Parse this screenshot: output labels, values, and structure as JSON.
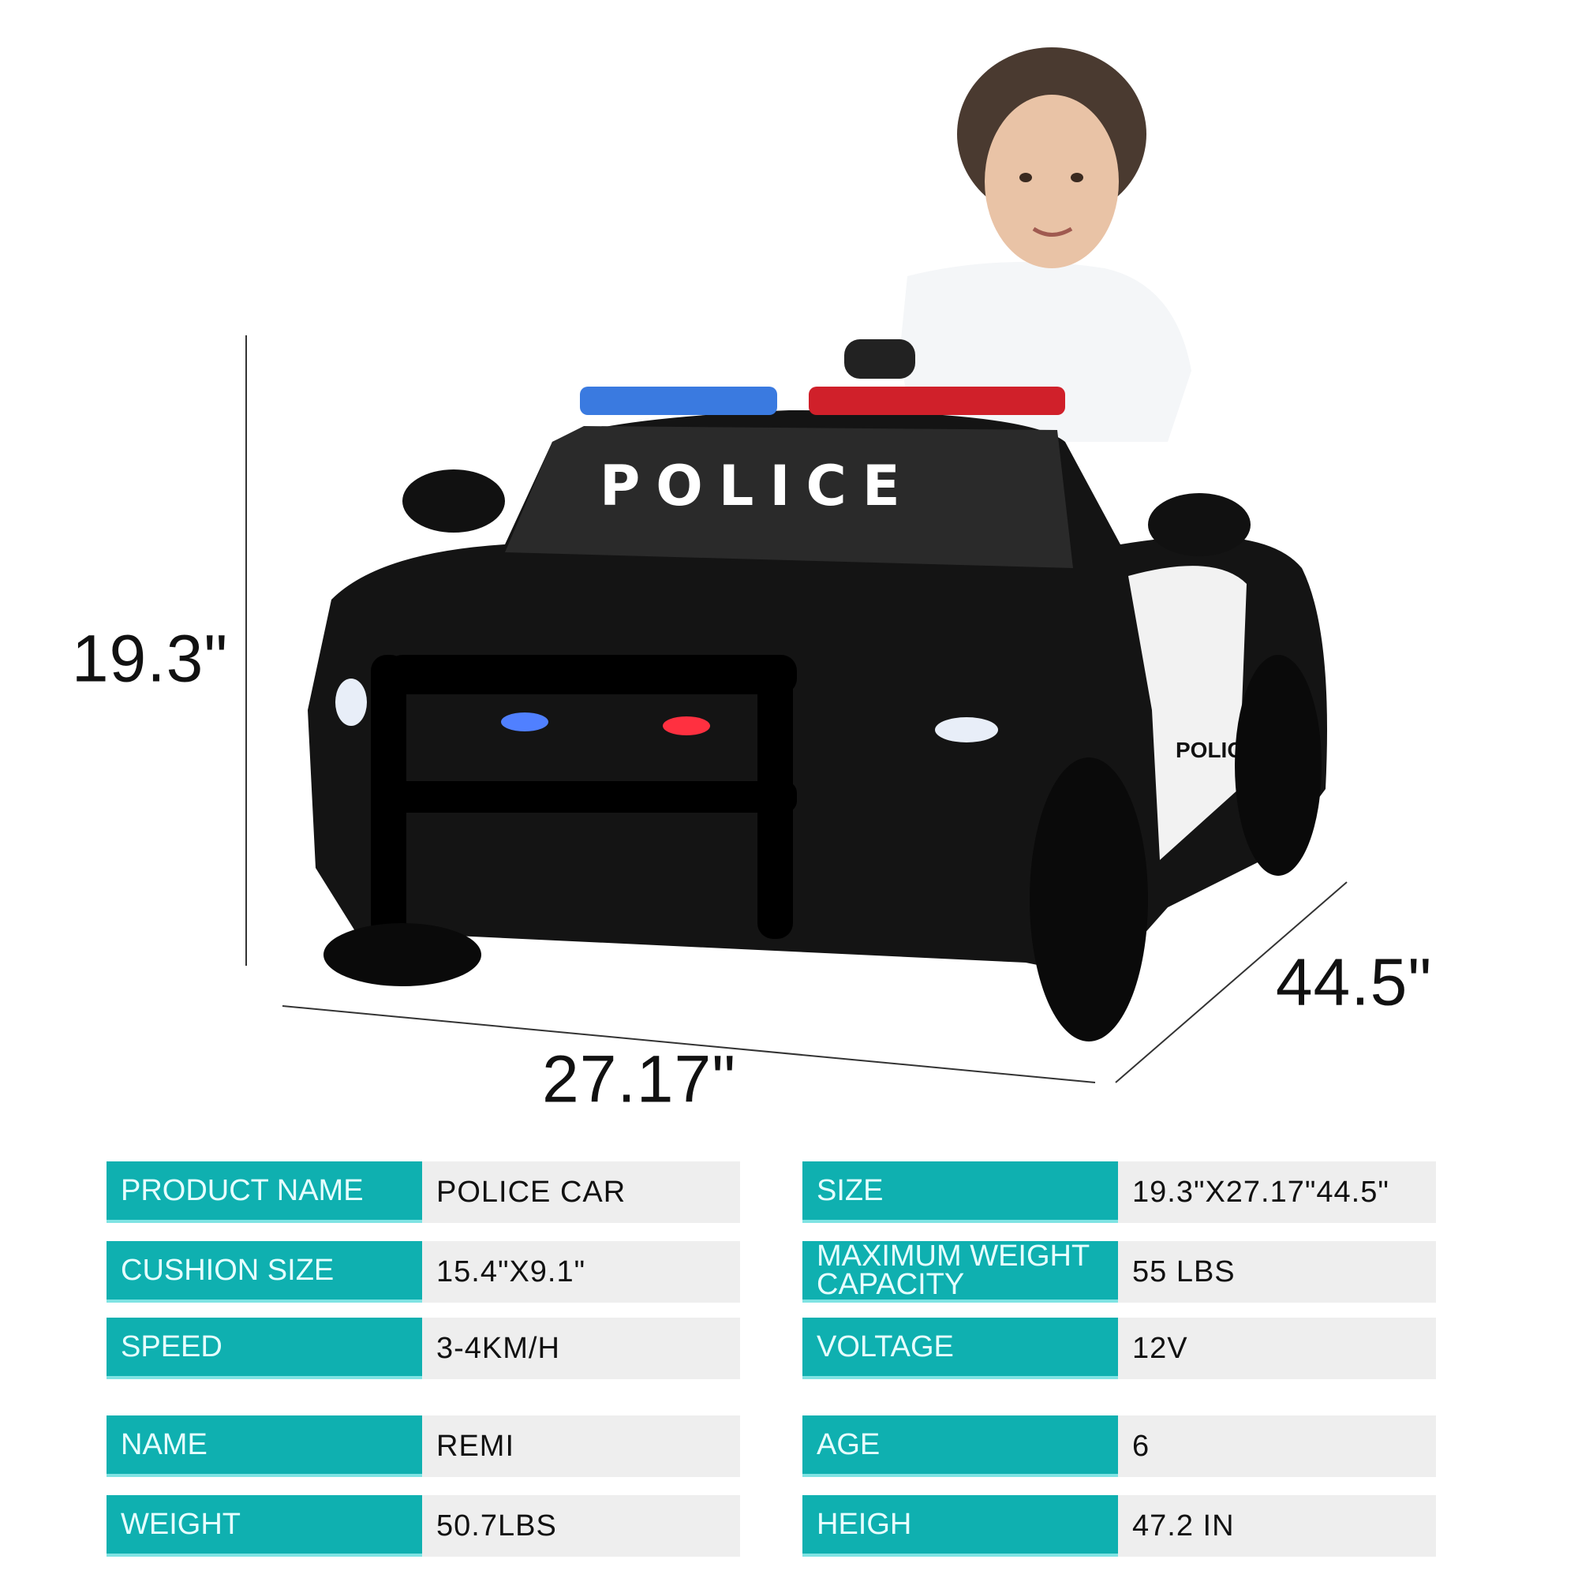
{
  "dimensions": {
    "height": "19.3\"",
    "width": "27.17\"",
    "length": "44.5\""
  },
  "car_lettering": {
    "windshield": "POLICE",
    "door": "POLICE"
  },
  "colors": {
    "accent": "#0fb0b0",
    "value_bg": "#eeeeee",
    "car_body": "#111111"
  },
  "specs_left": [
    {
      "label": "PRODUCT NAME",
      "value": "POLICE CAR"
    },
    {
      "label": "CUSHION SIZE",
      "value": "15.4\"X9.1\""
    },
    {
      "label": "SPEED",
      "value": "3-4KM/H"
    },
    {
      "label": "NAME",
      "value": "REMI"
    },
    {
      "label": "WEIGHT",
      "value": "50.7LBS"
    }
  ],
  "specs_right": [
    {
      "label": "SIZE",
      "value": "19.3\"X27.17\"44.5\""
    },
    {
      "label": "MAXIMUM WEIGHT CAPACITY",
      "value": "55 LBS"
    },
    {
      "label": "VOLTAGE",
      "value": "12V"
    },
    {
      "label": "AGE",
      "value": "6"
    },
    {
      "label": "HEIGH",
      "value": "47.2 IN"
    }
  ]
}
